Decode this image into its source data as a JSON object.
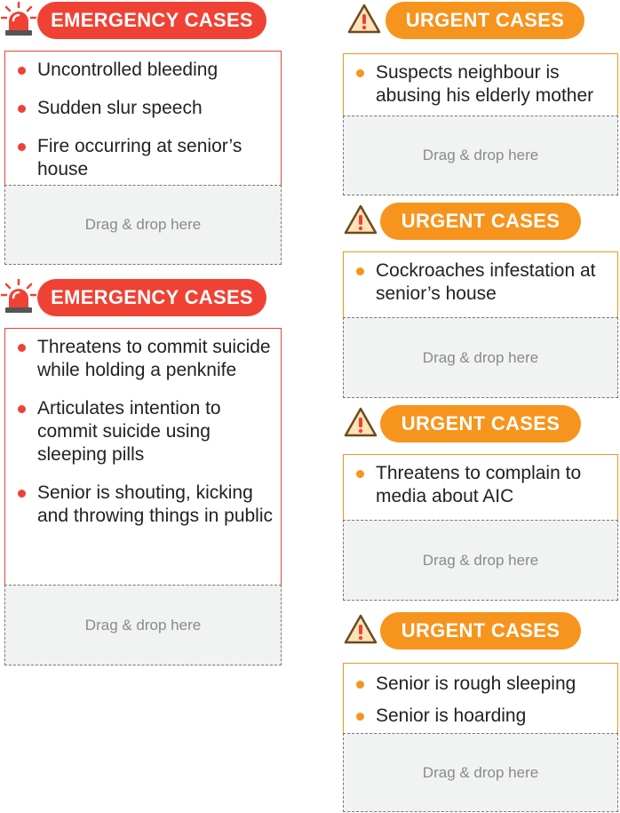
{
  "drop_label": "Drag & drop here",
  "colors": {
    "emergency": "#ef4234",
    "urgent": "#f7941d",
    "drop_bg": "#f1f2f2"
  },
  "left_column": [
    {
      "type": "emergency",
      "icon": "siren-icon",
      "title": "EMERGENCY CASES",
      "items": [
        "Uncontrolled bleeding",
        "Sudden slur speech",
        "Fire occurring at senior’s house"
      ]
    },
    {
      "type": "emergency",
      "icon": "siren-icon",
      "title": "EMERGENCY CASES",
      "items": [
        "Threatens to commit suicide while holding a penknife",
        "Articulates intention to commit suicide using sleeping pills",
        "Senior is shouting, kicking and throwing things in public"
      ]
    }
  ],
  "right_column": [
    {
      "type": "urgent",
      "icon": "warning-icon",
      "title": "URGENT CASES",
      "items": [
        "Suspects neighbour is abusing his elderly mother"
      ]
    },
    {
      "type": "urgent",
      "icon": "warning-icon",
      "title": "URGENT CASES",
      "items": [
        "Cockroaches infestation at senior’s house"
      ]
    },
    {
      "type": "urgent",
      "icon": "warning-icon",
      "title": "URGENT CASES",
      "items": [
        "Threatens to complain to media about AIC"
      ]
    },
    {
      "type": "urgent",
      "icon": "warning-icon",
      "title": "URGENT CASES",
      "items": [
        "Senior is rough sleeping",
        "Senior is hoarding"
      ]
    }
  ]
}
